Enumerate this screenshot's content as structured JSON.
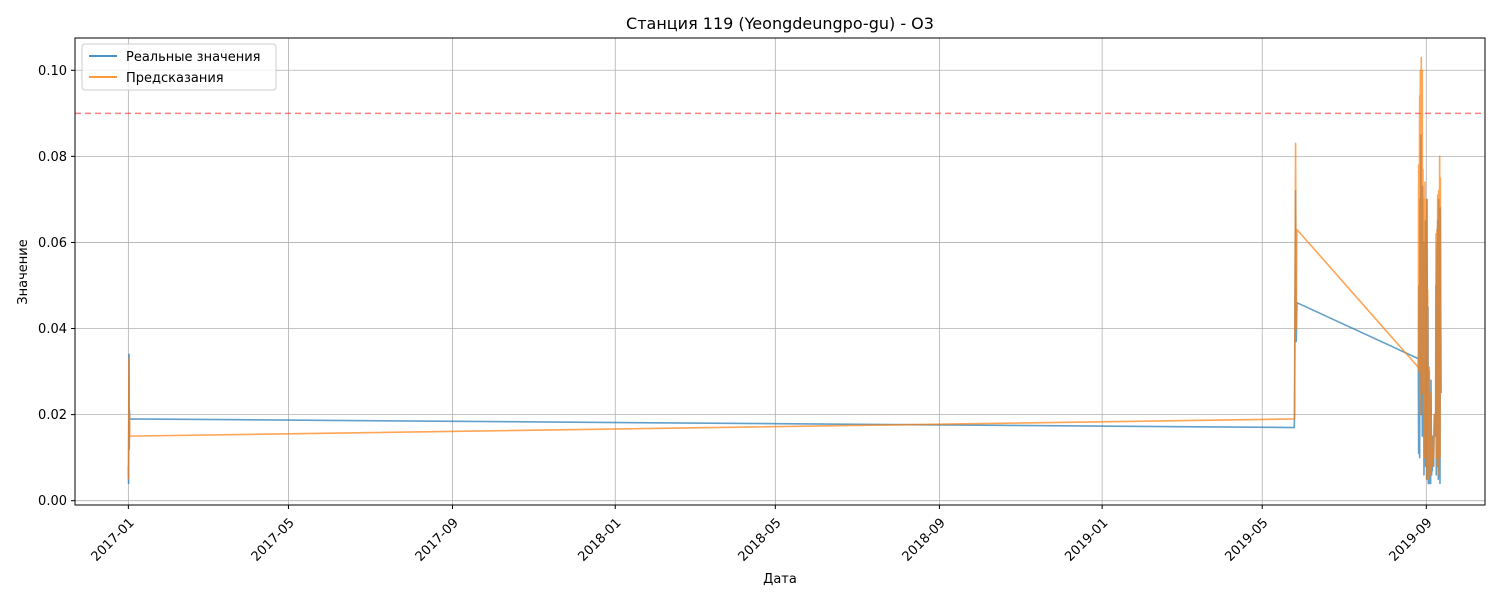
{
  "chart_data": {
    "type": "line",
    "title": "Станция 119 (Yeongdeungpo-gu) - O3",
    "xlabel": "Дата",
    "ylabel": "Значение",
    "xlim": [
      "2016-11-22",
      "2019-10-15"
    ],
    "ylim": [
      -0.001,
      0.1075
    ],
    "x_ticks": [
      "2017-01",
      "2017-05",
      "2017-09",
      "2018-01",
      "2018-05",
      "2018-09",
      "2019-01",
      "2019-05",
      "2019-09"
    ],
    "y_ticks": [
      "0.00",
      "0.02",
      "0.04",
      "0.06",
      "0.08",
      "0.10"
    ],
    "grid": true,
    "legend_position": "top-left",
    "threshold": {
      "value": 0.09,
      "color": "#ff0000",
      "style": "dashed"
    },
    "series": [
      {
        "name": "Реальные значения",
        "color": "#1f77b4",
        "points": [
          [
            "2017-01-01T00",
            0.008
          ],
          [
            "2017-01-01T04",
            0.004
          ],
          [
            "2017-01-01T08",
            0.02
          ],
          [
            "2017-01-01T12",
            0.034
          ],
          [
            "2017-01-01T16",
            0.012
          ],
          [
            "2017-01-01T20",
            0.021
          ],
          [
            "2017-01-02T00",
            0.019
          ],
          [
            "2019-05-25T00",
            0.017
          ],
          [
            "2019-05-25T06",
            0.02
          ],
          [
            "2019-05-25T12",
            0.04
          ],
          [
            "2019-05-25T18",
            0.055
          ],
          [
            "2019-05-26T00",
            0.072
          ],
          [
            "2019-05-26T06",
            0.05
          ],
          [
            "2019-05-26T12",
            0.037
          ],
          [
            "2019-05-27T00",
            0.046
          ],
          [
            "2019-08-26T00",
            0.033
          ],
          [
            "2019-08-26T06",
            0.011
          ],
          [
            "2019-08-26T12",
            0.05
          ],
          [
            "2019-08-27T00",
            0.01
          ],
          [
            "2019-08-27T06",
            0.07
          ],
          [
            "2019-08-27T12",
            0.03
          ],
          [
            "2019-08-28T00",
            0.085
          ],
          [
            "2019-08-28T06",
            0.02
          ],
          [
            "2019-08-28T12",
            0.06
          ],
          [
            "2019-08-29T00",
            0.015
          ],
          [
            "2019-08-29T06",
            0.073
          ],
          [
            "2019-08-29T12",
            0.03
          ],
          [
            "2019-08-30T00",
            0.06
          ],
          [
            "2019-08-30T06",
            0.006
          ],
          [
            "2019-08-30T12",
            0.05
          ],
          [
            "2019-08-31T00",
            0.01
          ],
          [
            "2019-08-31T06",
            0.065
          ],
          [
            "2019-08-31T12",
            0.008
          ],
          [
            "2019-09-01T00",
            0.04
          ],
          [
            "2019-09-01T06",
            0.005
          ],
          [
            "2019-09-01T12",
            0.07
          ],
          [
            "2019-09-02T00",
            0.01
          ],
          [
            "2019-09-02T06",
            0.045
          ],
          [
            "2019-09-02T12",
            0.004
          ],
          [
            "2019-09-03T00",
            0.03
          ],
          [
            "2019-09-03T06",
            0.004
          ],
          [
            "2019-09-03T12",
            0.02
          ],
          [
            "2019-09-04T00",
            0.025
          ],
          [
            "2019-09-04T06",
            0.004
          ],
          [
            "2019-09-04T12",
            0.028
          ],
          [
            "2019-09-05T00",
            0.006
          ],
          [
            "2019-09-05T06",
            0.01
          ],
          [
            "2019-09-05T12",
            0.007
          ],
          [
            "2019-09-06T00",
            0.015
          ],
          [
            "2019-09-06T12",
            0.008
          ],
          [
            "2019-09-07T00",
            0.02
          ],
          [
            "2019-09-08T00",
            0.015
          ],
          [
            "2019-09-08T06",
            0.05
          ],
          [
            "2019-09-08T12",
            0.006
          ],
          [
            "2019-09-09T00",
            0.06
          ],
          [
            "2019-09-09T06",
            0.008
          ],
          [
            "2019-09-09T12",
            0.065
          ],
          [
            "2019-09-10T00",
            0.005
          ],
          [
            "2019-09-10T06",
            0.07
          ],
          [
            "2019-09-10T12",
            0.01
          ],
          [
            "2019-09-11T00",
            0.06
          ],
          [
            "2019-09-11T06",
            0.004
          ],
          [
            "2019-09-11T12",
            0.068
          ],
          [
            "2019-09-12T00",
            0.025
          ]
        ]
      },
      {
        "name": "Предсказания",
        "color": "#ff7f0e",
        "points": [
          [
            "2017-01-01T00",
            0.005
          ],
          [
            "2017-01-01T04",
            0.01
          ],
          [
            "2017-01-01T08",
            0.025
          ],
          [
            "2017-01-01T12",
            0.033
          ],
          [
            "2017-01-01T16",
            0.012
          ],
          [
            "2017-01-01T20",
            0.02
          ],
          [
            "2017-01-02T00",
            0.015
          ],
          [
            "2019-05-25T00",
            0.019
          ],
          [
            "2019-05-25T06",
            0.022
          ],
          [
            "2019-05-25T12",
            0.045
          ],
          [
            "2019-05-25T18",
            0.06
          ],
          [
            "2019-05-26T00",
            0.083
          ],
          [
            "2019-05-26T06",
            0.055
          ],
          [
            "2019-05-26T12",
            0.04
          ],
          [
            "2019-05-27T00",
            0.063
          ],
          [
            "2019-08-26T00",
            0.031
          ],
          [
            "2019-08-26T06",
            0.078
          ],
          [
            "2019-08-26T12",
            0.03
          ],
          [
            "2019-08-27T00",
            0.094
          ],
          [
            "2019-08-27T06",
            0.02
          ],
          [
            "2019-08-27T12",
            0.1
          ],
          [
            "2019-08-28T00",
            0.03
          ],
          [
            "2019-08-28T06",
            0.103
          ],
          [
            "2019-08-28T12",
            0.04
          ],
          [
            "2019-08-29T00",
            0.1
          ],
          [
            "2019-08-29T06",
            0.025
          ],
          [
            "2019-08-29T12",
            0.077
          ],
          [
            "2019-08-30T00",
            0.02
          ],
          [
            "2019-08-30T06",
            0.07
          ],
          [
            "2019-08-30T12",
            0.01
          ],
          [
            "2019-08-31T00",
            0.074
          ],
          [
            "2019-08-31T06",
            0.015
          ],
          [
            "2019-08-31T12",
            0.065
          ],
          [
            "2019-09-01T00",
            0.008
          ],
          [
            "2019-09-01T06",
            0.07
          ],
          [
            "2019-09-01T12",
            0.005
          ],
          [
            "2019-09-02T00",
            0.049
          ],
          [
            "2019-09-02T06",
            0.01
          ],
          [
            "2019-09-02T12",
            0.03
          ],
          [
            "2019-09-03T00",
            0.005
          ],
          [
            "2019-09-03T06",
            0.031
          ],
          [
            "2019-09-03T12",
            0.007
          ],
          [
            "2019-09-04T00",
            0.025
          ],
          [
            "2019-09-04T06",
            0.006
          ],
          [
            "2019-09-04T12",
            0.02
          ],
          [
            "2019-09-05T00",
            0.01
          ],
          [
            "2019-09-05T06",
            0.015
          ],
          [
            "2019-09-05T12",
            0.008
          ],
          [
            "2019-09-06T00",
            0.012
          ],
          [
            "2019-09-06T12",
            0.01
          ],
          [
            "2019-09-07T00",
            0.02
          ],
          [
            "2019-09-08T00",
            0.02
          ],
          [
            "2019-09-08T06",
            0.062
          ],
          [
            "2019-09-08T12",
            0.01
          ],
          [
            "2019-09-09T00",
            0.063
          ],
          [
            "2019-09-09T06",
            0.008
          ],
          [
            "2019-09-09T12",
            0.071
          ],
          [
            "2019-09-10T00",
            0.01
          ],
          [
            "2019-09-10T06",
            0.072
          ],
          [
            "2019-09-10T12",
            0.006
          ],
          [
            "2019-09-11T00",
            0.08
          ],
          [
            "2019-09-11T06",
            0.01
          ],
          [
            "2019-09-11T12",
            0.075
          ],
          [
            "2019-09-12T00",
            0.025
          ]
        ]
      }
    ]
  }
}
